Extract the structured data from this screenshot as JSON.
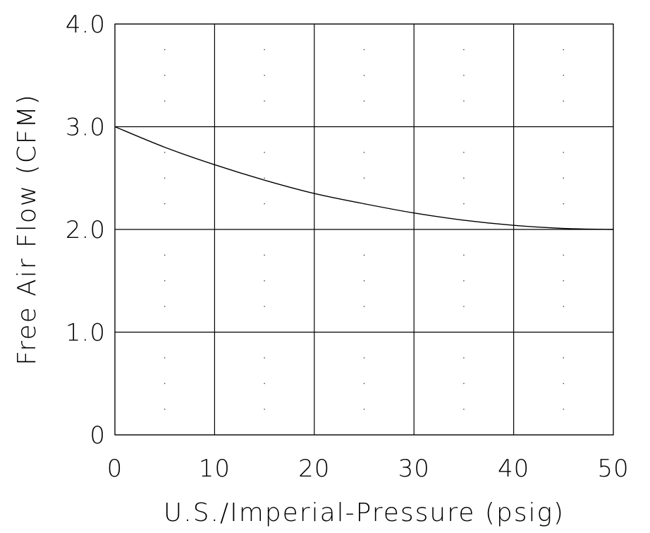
{
  "chart_data": {
    "type": "line",
    "xlabel": "U.S./Imperial-Pressure (psig)",
    "ylabel": "Free Air Flow (CFM)",
    "xlim": [
      0,
      50
    ],
    "ylim": [
      0,
      4.0
    ],
    "x_ticks": [
      "0",
      "10",
      "20",
      "30",
      "40",
      "50"
    ],
    "y_ticks": [
      "0",
      "1.0",
      "2.0",
      "3.0",
      "4.0"
    ],
    "x_tick_values": [
      0,
      10,
      20,
      30,
      40,
      50
    ],
    "y_tick_values": [
      0,
      1,
      2,
      3,
      4
    ],
    "x_minor_step": 5,
    "y_minor_step": 0.25,
    "grid": true,
    "line_color": "#000000",
    "series": [
      {
        "x": [
          0,
          5,
          10,
          15,
          20,
          25,
          30,
          35,
          40,
          45,
          50
        ],
        "values": [
          3.0,
          2.8,
          2.63,
          2.48,
          2.35,
          2.25,
          2.16,
          2.09,
          2.04,
          2.01,
          2.0
        ]
      }
    ]
  }
}
